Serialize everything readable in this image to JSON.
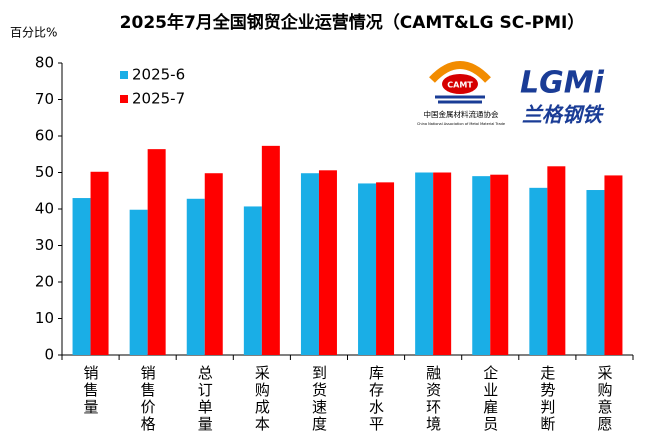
{
  "chart_data": {
    "type": "bar",
    "title": "2025年7月全国钢贸企业运营情况（CAMT&LG SC-PMI）",
    "y_label": "百分比%",
    "categories": [
      "销售量",
      "销售价格",
      "总订单量",
      "采购成本",
      "到货速度",
      "库存水平",
      "融资环境",
      "企业雇员",
      "走势判断",
      "采购意愿"
    ],
    "series": [
      {
        "name": "2025-6",
        "color": "#1aaee6",
        "values": [
          43.0,
          39.8,
          42.8,
          40.7,
          49.8,
          47.0,
          50.0,
          49.0,
          45.8,
          45.2
        ]
      },
      {
        "name": "2025-7",
        "color": "#ff0000",
        "values": [
          50.2,
          56.4,
          49.8,
          57.3,
          50.6,
          47.3,
          50.0,
          49.4,
          51.7,
          49.2
        ]
      }
    ],
    "ylim": [
      0,
      80
    ],
    "yticks": [
      0,
      10,
      20,
      30,
      40,
      50,
      60,
      70,
      80
    ],
    "grid": false,
    "legend": "upper-left"
  },
  "logos": {
    "camt": "CAMT",
    "camt_name": "中国金属材料流通协会",
    "camt_english": "China National Association of Metal Material Trade",
    "lgmi": "LGMi",
    "lgmi_name": "兰格钢铁"
  }
}
